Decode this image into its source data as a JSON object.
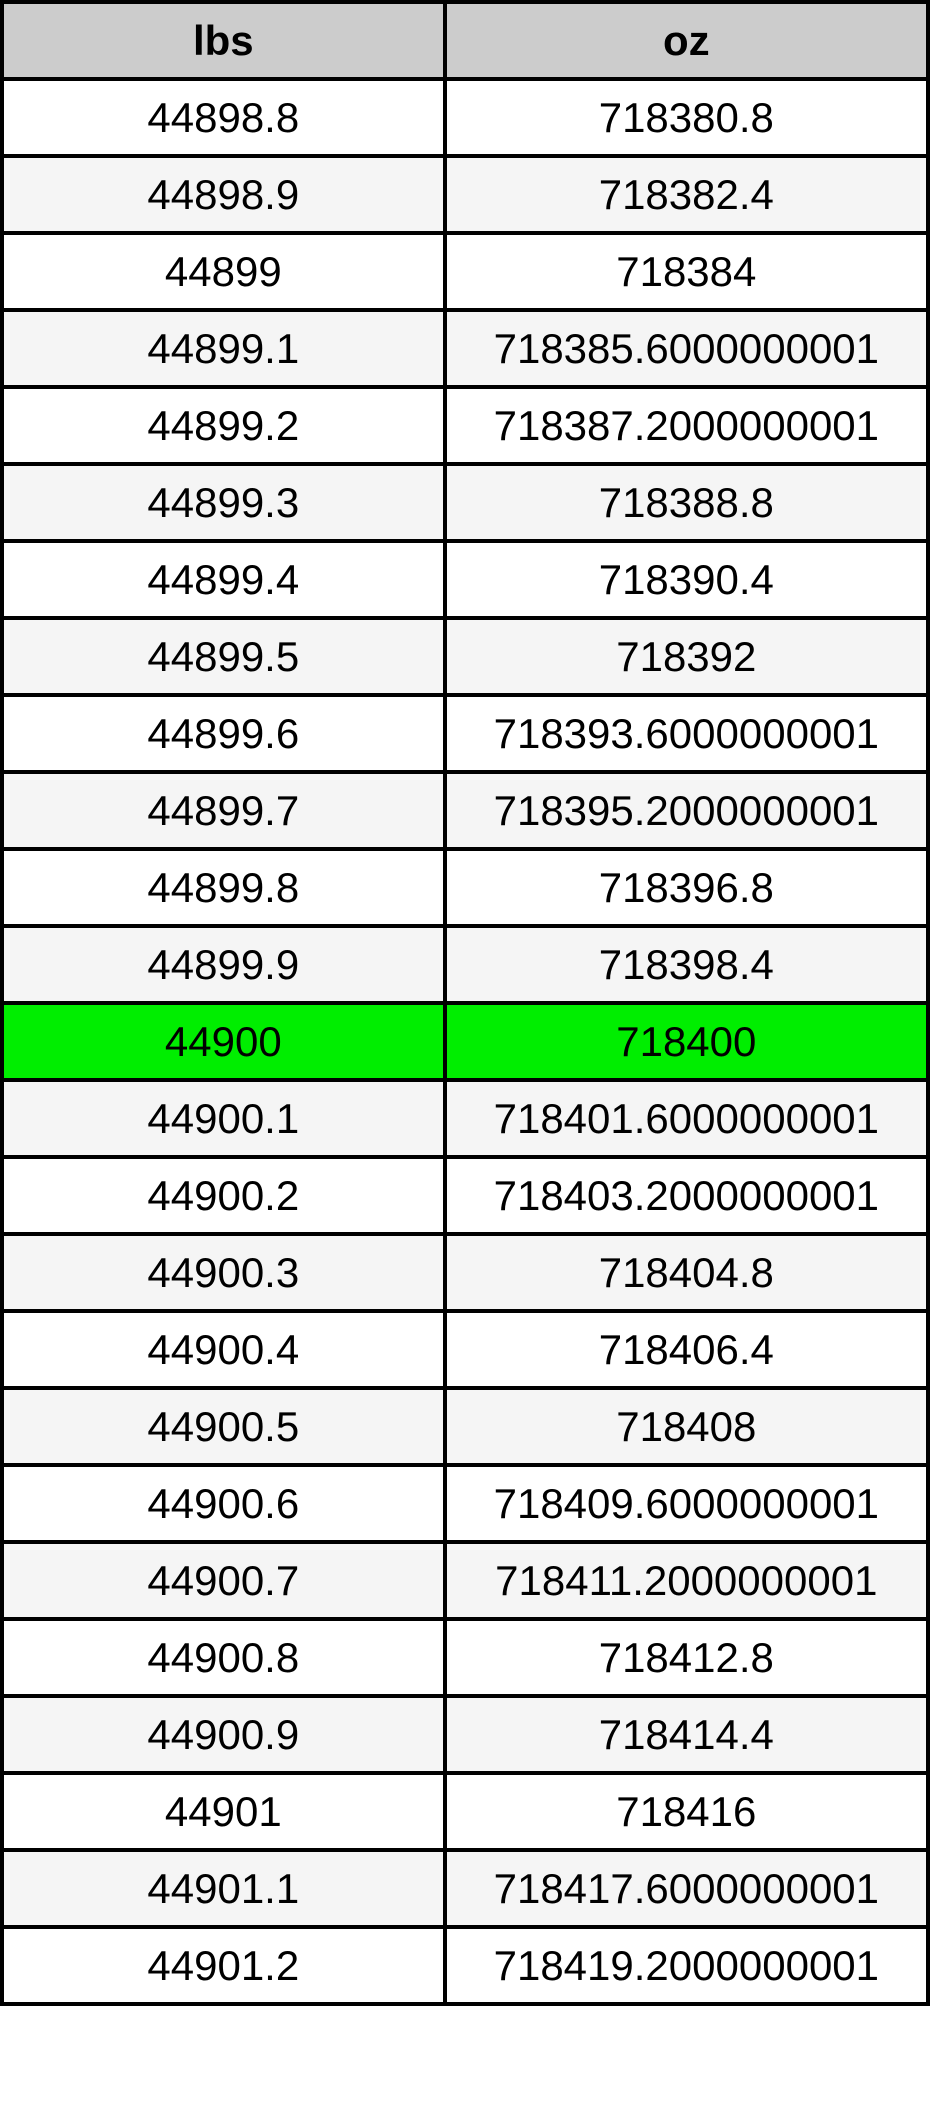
{
  "table": {
    "columns": [
      "lbs",
      "oz"
    ],
    "colors": {
      "header_bg": "#cccccc",
      "alt_row_bg": "#f5f5f5",
      "row_bg": "#ffffff",
      "highlight_row_bg": "#00ee00",
      "border": "#000000",
      "text": "#000000"
    },
    "rows": [
      {
        "lbs": "44898.8",
        "oz": "718380.8",
        "highlight": false
      },
      {
        "lbs": "44898.9",
        "oz": "718382.4",
        "highlight": false
      },
      {
        "lbs": "44899",
        "oz": "718384",
        "highlight": false
      },
      {
        "lbs": "44899.1",
        "oz": "718385.6000000001",
        "highlight": false
      },
      {
        "lbs": "44899.2",
        "oz": "718387.2000000001",
        "highlight": false
      },
      {
        "lbs": "44899.3",
        "oz": "718388.8",
        "highlight": false
      },
      {
        "lbs": "44899.4",
        "oz": "718390.4",
        "highlight": false
      },
      {
        "lbs": "44899.5",
        "oz": "718392",
        "highlight": false
      },
      {
        "lbs": "44899.6",
        "oz": "718393.6000000001",
        "highlight": false
      },
      {
        "lbs": "44899.7",
        "oz": "718395.2000000001",
        "highlight": false
      },
      {
        "lbs": "44899.8",
        "oz": "718396.8",
        "highlight": false
      },
      {
        "lbs": "44899.9",
        "oz": "718398.4",
        "highlight": false
      },
      {
        "lbs": "44900",
        "oz": "718400",
        "highlight": true
      },
      {
        "lbs": "44900.1",
        "oz": "718401.6000000001",
        "highlight": false
      },
      {
        "lbs": "44900.2",
        "oz": "718403.2000000001",
        "highlight": false
      },
      {
        "lbs": "44900.3",
        "oz": "718404.8",
        "highlight": false
      },
      {
        "lbs": "44900.4",
        "oz": "718406.4",
        "highlight": false
      },
      {
        "lbs": "44900.5",
        "oz": "718408",
        "highlight": false
      },
      {
        "lbs": "44900.6",
        "oz": "718409.6000000001",
        "highlight": false
      },
      {
        "lbs": "44900.7",
        "oz": "718411.2000000001",
        "highlight": false
      },
      {
        "lbs": "44900.8",
        "oz": "718412.8",
        "highlight": false
      },
      {
        "lbs": "44900.9",
        "oz": "718414.4",
        "highlight": false
      },
      {
        "lbs": "44901",
        "oz": "718416",
        "highlight": false
      },
      {
        "lbs": "44901.1",
        "oz": "718417.6000000001",
        "highlight": false
      },
      {
        "lbs": "44901.2",
        "oz": "718419.2000000001",
        "highlight": false
      }
    ]
  }
}
